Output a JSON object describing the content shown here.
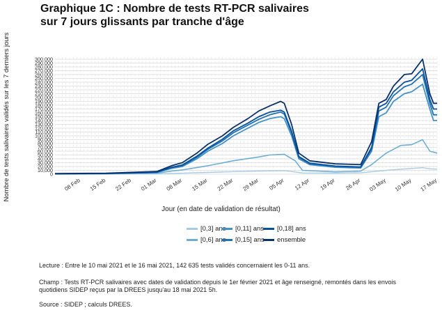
{
  "title_line1": "Graphique 1C : Nombre de tests RT-PCR salivaires",
  "title_line2": "sur 7 jours glissants par tranche d'âge",
  "notes": {
    "lecture": "Lecture : Entre le 10 mai 2021 et le 16 mai 2021, 142 635 tests validés concernaient les 0-11 ans.",
    "champ_line1": "Champ : Tests RT-PCR salivaires avec dates de validation depuis le 1er février 2021 et âge renseigné, remontés dans les envois",
    "champ_line2": "quotidiens SIDEP reçus par la DREES jusqu'au 18 mai 2021 5h.",
    "source": "Source : SIDEP ; calculs DREES."
  },
  "chart_data": {
    "type": "line",
    "title": "Graphique 1C : Nombre de tests RT-PCR salivaires sur 7 jours glissants par tranche d'âge",
    "xlabel": "Jour (en date de validation de résultat)",
    "ylabel": "Nombre de tests salivaires validés sur les 7 derniers jours",
    "ylim": [
      0,
      300000
    ],
    "yticks": [
      "0",
      "10,000",
      "20,000",
      "30,000",
      "40,000",
      "50,000",
      "60,000",
      "70,000",
      "80,000",
      "90,000",
      "100,000",
      "110,000",
      "120,000",
      "130,000",
      "140,000",
      "150,000",
      "160,000",
      "170,000",
      "180,000",
      "190,000",
      "200,000",
      "210,000",
      "220,000",
      "230,000",
      "240,000",
      "250,000",
      "260,000",
      "270,000",
      "280,000",
      "290,000",
      "300,000"
    ],
    "xticks": [
      "08 Feb",
      "15 Feb",
      "22 Feb",
      "01 Mar",
      "08 Mar",
      "15 Mar",
      "22 Mar",
      "29 Mar",
      "05 Apr",
      "12 Apr",
      "19 Apr",
      "26 Apr",
      "03 May",
      "10 May",
      "17 May"
    ],
    "x_start": "2021-02-01",
    "x_end": "2021-05-17",
    "grid": true,
    "legend_position": "bottom",
    "series": [
      {
        "name": "[0,3] ans",
        "color": "#a6cbe3",
        "points": [
          [
            "2021-02-01",
            100
          ],
          [
            "2021-02-15",
            300
          ],
          [
            "2021-03-01",
            700
          ],
          [
            "2021-03-08",
            2500
          ],
          [
            "2021-03-15",
            4500
          ],
          [
            "2021-03-22",
            6500
          ],
          [
            "2021-03-29",
            8000
          ],
          [
            "2021-04-05",
            9000
          ],
          [
            "2021-04-07",
            7000
          ],
          [
            "2021-04-10",
            3000
          ],
          [
            "2021-04-19",
            2500
          ],
          [
            "2021-04-26",
            3500
          ],
          [
            "2021-05-03",
            10000
          ],
          [
            "2021-05-10",
            15000
          ],
          [
            "2021-05-13",
            17000
          ],
          [
            "2021-05-15",
            14000
          ],
          [
            "2021-05-17",
            13000
          ]
        ]
      },
      {
        "name": "[0,6] ans",
        "color": "#6baed6",
        "points": [
          [
            "2021-02-01",
            300
          ],
          [
            "2021-02-15",
            700
          ],
          [
            "2021-03-01",
            2500
          ],
          [
            "2021-03-05",
            8000
          ],
          [
            "2021-03-08",
            11000
          ],
          [
            "2021-03-15",
            22000
          ],
          [
            "2021-03-22",
            35000
          ],
          [
            "2021-03-29",
            45000
          ],
          [
            "2021-04-01",
            50000
          ],
          [
            "2021-04-05",
            52000
          ],
          [
            "2021-04-08",
            35000
          ],
          [
            "2021-04-10",
            10000
          ],
          [
            "2021-04-19",
            6000
          ],
          [
            "2021-04-26",
            8000
          ],
          [
            "2021-04-29",
            25000
          ],
          [
            "2021-05-03",
            55000
          ],
          [
            "2021-05-07",
            75000
          ],
          [
            "2021-05-10",
            77000
          ],
          [
            "2021-05-13",
            90000
          ],
          [
            "2021-05-15",
            60000
          ],
          [
            "2021-05-17",
            55000
          ]
        ]
      },
      {
        "name": "[0,11] ans",
        "color": "#4292c6",
        "points": [
          [
            "2021-02-01",
            800
          ],
          [
            "2021-02-15",
            1500
          ],
          [
            "2021-03-01",
            4500
          ],
          [
            "2021-03-05",
            15000
          ],
          [
            "2021-03-08",
            20000
          ],
          [
            "2021-03-12",
            40000
          ],
          [
            "2021-03-15",
            60000
          ],
          [
            "2021-03-19",
            80000
          ],
          [
            "2021-03-22",
            100000
          ],
          [
            "2021-03-26",
            120000
          ],
          [
            "2021-03-29",
            135000
          ],
          [
            "2021-04-01",
            145000
          ],
          [
            "2021-04-04",
            150000
          ],
          [
            "2021-04-05",
            145000
          ],
          [
            "2021-04-07",
            100000
          ],
          [
            "2021-04-09",
            40000
          ],
          [
            "2021-04-12",
            25000
          ],
          [
            "2021-04-19",
            18000
          ],
          [
            "2021-04-26",
            16000
          ],
          [
            "2021-04-29",
            60000
          ],
          [
            "2021-05-01",
            150000
          ],
          [
            "2021-05-03",
            160000
          ],
          [
            "2021-05-05",
            190000
          ],
          [
            "2021-05-08",
            210000
          ],
          [
            "2021-05-10",
            215000
          ],
          [
            "2021-05-13",
            235000
          ],
          [
            "2021-05-15",
            170000
          ],
          [
            "2021-05-16",
            140000
          ],
          [
            "2021-05-17",
            140000
          ]
        ]
      },
      {
        "name": "[0,15] ans",
        "color": "#2171b5",
        "points": [
          [
            "2021-02-01",
            900
          ],
          [
            "2021-02-15",
            1700
          ],
          [
            "2021-03-01",
            5000
          ],
          [
            "2021-03-05",
            17000
          ],
          [
            "2021-03-08",
            22000
          ],
          [
            "2021-03-12",
            44000
          ],
          [
            "2021-03-15",
            65000
          ],
          [
            "2021-03-19",
            87000
          ],
          [
            "2021-03-22",
            108000
          ],
          [
            "2021-03-26",
            128000
          ],
          [
            "2021-03-29",
            143000
          ],
          [
            "2021-04-01",
            155000
          ],
          [
            "2021-04-04",
            162000
          ],
          [
            "2021-04-05",
            157000
          ],
          [
            "2021-04-07",
            108000
          ],
          [
            "2021-04-09",
            44000
          ],
          [
            "2021-04-12",
            27000
          ],
          [
            "2021-04-19",
            20000
          ],
          [
            "2021-04-26",
            18000
          ],
          [
            "2021-04-29",
            65000
          ],
          [
            "2021-05-01",
            165000
          ],
          [
            "2021-05-03",
            175000
          ],
          [
            "2021-05-05",
            205000
          ],
          [
            "2021-05-08",
            228000
          ],
          [
            "2021-05-10",
            235000
          ],
          [
            "2021-05-13",
            260000
          ],
          [
            "2021-05-15",
            185000
          ],
          [
            "2021-05-16",
            155000
          ],
          [
            "2021-05-17",
            155000
          ]
        ]
      },
      {
        "name": "[0,18] ans",
        "color": "#08519c",
        "points": [
          [
            "2021-02-01",
            1000
          ],
          [
            "2021-02-15",
            1800
          ],
          [
            "2021-03-01",
            5500
          ],
          [
            "2021-03-05",
            18000
          ],
          [
            "2021-03-08",
            24000
          ],
          [
            "2021-03-12",
            47000
          ],
          [
            "2021-03-15",
            68000
          ],
          [
            "2021-03-19",
            91000
          ],
          [
            "2021-03-22",
            113000
          ],
          [
            "2021-03-26",
            133000
          ],
          [
            "2021-03-29",
            150000
          ],
          [
            "2021-04-01",
            162000
          ],
          [
            "2021-04-04",
            167000
          ],
          [
            "2021-04-05",
            162000
          ],
          [
            "2021-04-07",
            112000
          ],
          [
            "2021-04-09",
            46000
          ],
          [
            "2021-04-12",
            29000
          ],
          [
            "2021-04-19",
            21000
          ],
          [
            "2021-04-26",
            19000
          ],
          [
            "2021-04-29",
            70000
          ],
          [
            "2021-05-01",
            175000
          ],
          [
            "2021-05-03",
            185000
          ],
          [
            "2021-05-05",
            215000
          ],
          [
            "2021-05-08",
            240000
          ],
          [
            "2021-05-10",
            245000
          ],
          [
            "2021-05-13",
            275000
          ],
          [
            "2021-05-15",
            195000
          ],
          [
            "2021-05-16",
            170000
          ],
          [
            "2021-05-17",
            170000
          ]
        ]
      },
      {
        "name": "ensemble",
        "color": "#08306b",
        "points": [
          [
            "2021-02-01",
            1500
          ],
          [
            "2021-02-15",
            2500
          ],
          [
            "2021-03-01",
            7000
          ],
          [
            "2021-03-05",
            22000
          ],
          [
            "2021-03-08",
            30000
          ],
          [
            "2021-03-12",
            55000
          ],
          [
            "2021-03-15",
            78000
          ],
          [
            "2021-03-19",
            100000
          ],
          [
            "2021-03-22",
            122000
          ],
          [
            "2021-03-26",
            145000
          ],
          [
            "2021-03-29",
            165000
          ],
          [
            "2021-04-01",
            178000
          ],
          [
            "2021-04-04",
            190000
          ],
          [
            "2021-04-05",
            185000
          ],
          [
            "2021-04-07",
            130000
          ],
          [
            "2021-04-09",
            55000
          ],
          [
            "2021-04-12",
            35000
          ],
          [
            "2021-04-19",
            27000
          ],
          [
            "2021-04-26",
            25000
          ],
          [
            "2021-04-29",
            85000
          ],
          [
            "2021-05-01",
            185000
          ],
          [
            "2021-05-03",
            195000
          ],
          [
            "2021-05-05",
            230000
          ],
          [
            "2021-05-08",
            260000
          ],
          [
            "2021-05-10",
            262000
          ],
          [
            "2021-05-13",
            300000
          ],
          [
            "2021-05-15",
            210000
          ],
          [
            "2021-05-16",
            185000
          ],
          [
            "2021-05-17",
            185000
          ]
        ]
      }
    ]
  }
}
